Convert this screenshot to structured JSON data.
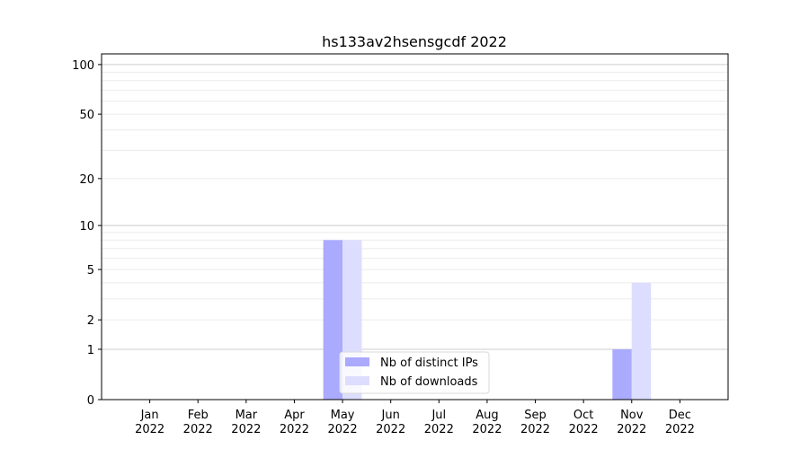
{
  "chart_data": {
    "type": "bar",
    "title": "hs133av2hsensgcdf 2022",
    "xlabel": "",
    "ylabel": "",
    "yscale": "symlog",
    "ylim": [
      0,
      116
    ],
    "yticks": [
      0,
      1,
      2,
      5,
      10,
      20,
      50,
      100
    ],
    "ytick_labels": [
      "0",
      "1",
      "2",
      "5",
      "10",
      "20",
      "50",
      "100"
    ],
    "grid": true,
    "categories": [
      "Jan\n2022",
      "Feb\n2022",
      "Mar\n2022",
      "Apr\n2022",
      "May\n2022",
      "Jun\n2022",
      "Jul\n2022",
      "Aug\n2022",
      "Sep\n2022",
      "Oct\n2022",
      "Nov\n2022",
      "Dec\n2022"
    ],
    "series": [
      {
        "name": "Nb of distinct IPs",
        "color": "#aaaaff",
        "values": [
          0,
          0,
          0,
          0,
          8,
          0,
          0,
          0,
          0,
          0,
          1,
          0
        ]
      },
      {
        "name": "Nb of downloads",
        "color": "#ddddff",
        "values": [
          0,
          0,
          0,
          0,
          8,
          0,
          0,
          0,
          0,
          0,
          4,
          0
        ]
      }
    ],
    "legend_placement": "lower-center"
  }
}
